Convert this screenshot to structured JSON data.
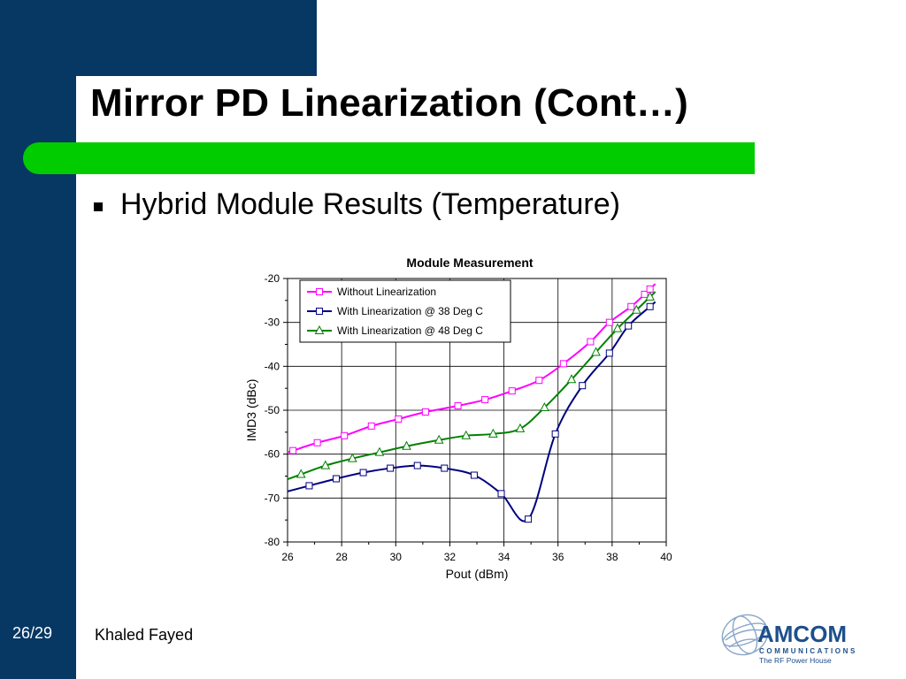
{
  "slide": {
    "title": "Mirror PD Linearization (Cont…)",
    "bullet": "Hybrid Module Results (Temperature)",
    "slide_number": "26/29",
    "author": "Khaled Fayed",
    "logo": {
      "name": "AMCOM",
      "line1": "COMMUNICATIONS",
      "line2": "The RF Power House"
    },
    "colors": {
      "sidebar": "#073763",
      "accent_bar": "#00cc00"
    }
  },
  "chart_data": {
    "type": "line",
    "title": "Module Measurement",
    "xlabel": "Pout (dBm)",
    "ylabel": "IMD3 (dBc)",
    "xlim": [
      26,
      40
    ],
    "ylim": [
      -80,
      -20
    ],
    "x_ticks": [
      "26",
      "28",
      "30",
      "32",
      "34",
      "36",
      "38",
      "40"
    ],
    "y_ticks": [
      "-20",
      "-30",
      "-40",
      "-50",
      "-60",
      "-70",
      "-80"
    ],
    "grid": true,
    "legend_position": "top-left",
    "series": [
      {
        "name": "Without Linearization",
        "color": "#ff00ff",
        "marker": "square",
        "points": [
          [
            26.2,
            -59.2
          ],
          [
            27.1,
            -57.4
          ],
          [
            28.1,
            -55.8
          ],
          [
            29.1,
            -53.6
          ],
          [
            30.1,
            -52.0
          ],
          [
            31.1,
            -50.4
          ],
          [
            32.3,
            -49.0
          ],
          [
            33.3,
            -47.6
          ],
          [
            34.3,
            -45.6
          ],
          [
            35.3,
            -43.2
          ],
          [
            36.2,
            -39.4
          ],
          [
            37.2,
            -34.4
          ],
          [
            37.9,
            -30.0
          ],
          [
            38.7,
            -26.4
          ],
          [
            39.2,
            -23.6
          ],
          [
            39.4,
            -22.4
          ]
        ]
      },
      {
        "name": "With Linearization @ 38 Deg C",
        "color": "#000080",
        "marker": "square",
        "points": [
          [
            26.8,
            -67.2
          ],
          [
            27.8,
            -65.6
          ],
          [
            28.8,
            -64.2
          ],
          [
            29.8,
            -63.2
          ],
          [
            30.8,
            -62.6
          ],
          [
            31.8,
            -63.2
          ],
          [
            32.9,
            -64.8
          ],
          [
            33.9,
            -69.0
          ],
          [
            34.9,
            -74.8
          ],
          [
            35.9,
            -55.4
          ],
          [
            36.9,
            -44.4
          ],
          [
            37.9,
            -37.0
          ],
          [
            38.6,
            -30.8
          ],
          [
            39.4,
            -26.4
          ]
        ]
      },
      {
        "name": "With Linearization @ 48 Deg C",
        "color": "#008000",
        "marker": "triangle",
        "points": [
          [
            26.5,
            -64.6
          ],
          [
            27.4,
            -62.6
          ],
          [
            28.4,
            -61.0
          ],
          [
            29.4,
            -59.6
          ],
          [
            30.4,
            -58.2
          ],
          [
            31.6,
            -56.8
          ],
          [
            32.6,
            -55.8
          ],
          [
            33.6,
            -55.4
          ],
          [
            34.6,
            -54.2
          ],
          [
            35.5,
            -49.4
          ],
          [
            36.5,
            -43.0
          ],
          [
            37.4,
            -36.8
          ],
          [
            38.2,
            -31.4
          ],
          [
            38.9,
            -27.2
          ],
          [
            39.4,
            -24.2
          ]
        ]
      }
    ]
  }
}
